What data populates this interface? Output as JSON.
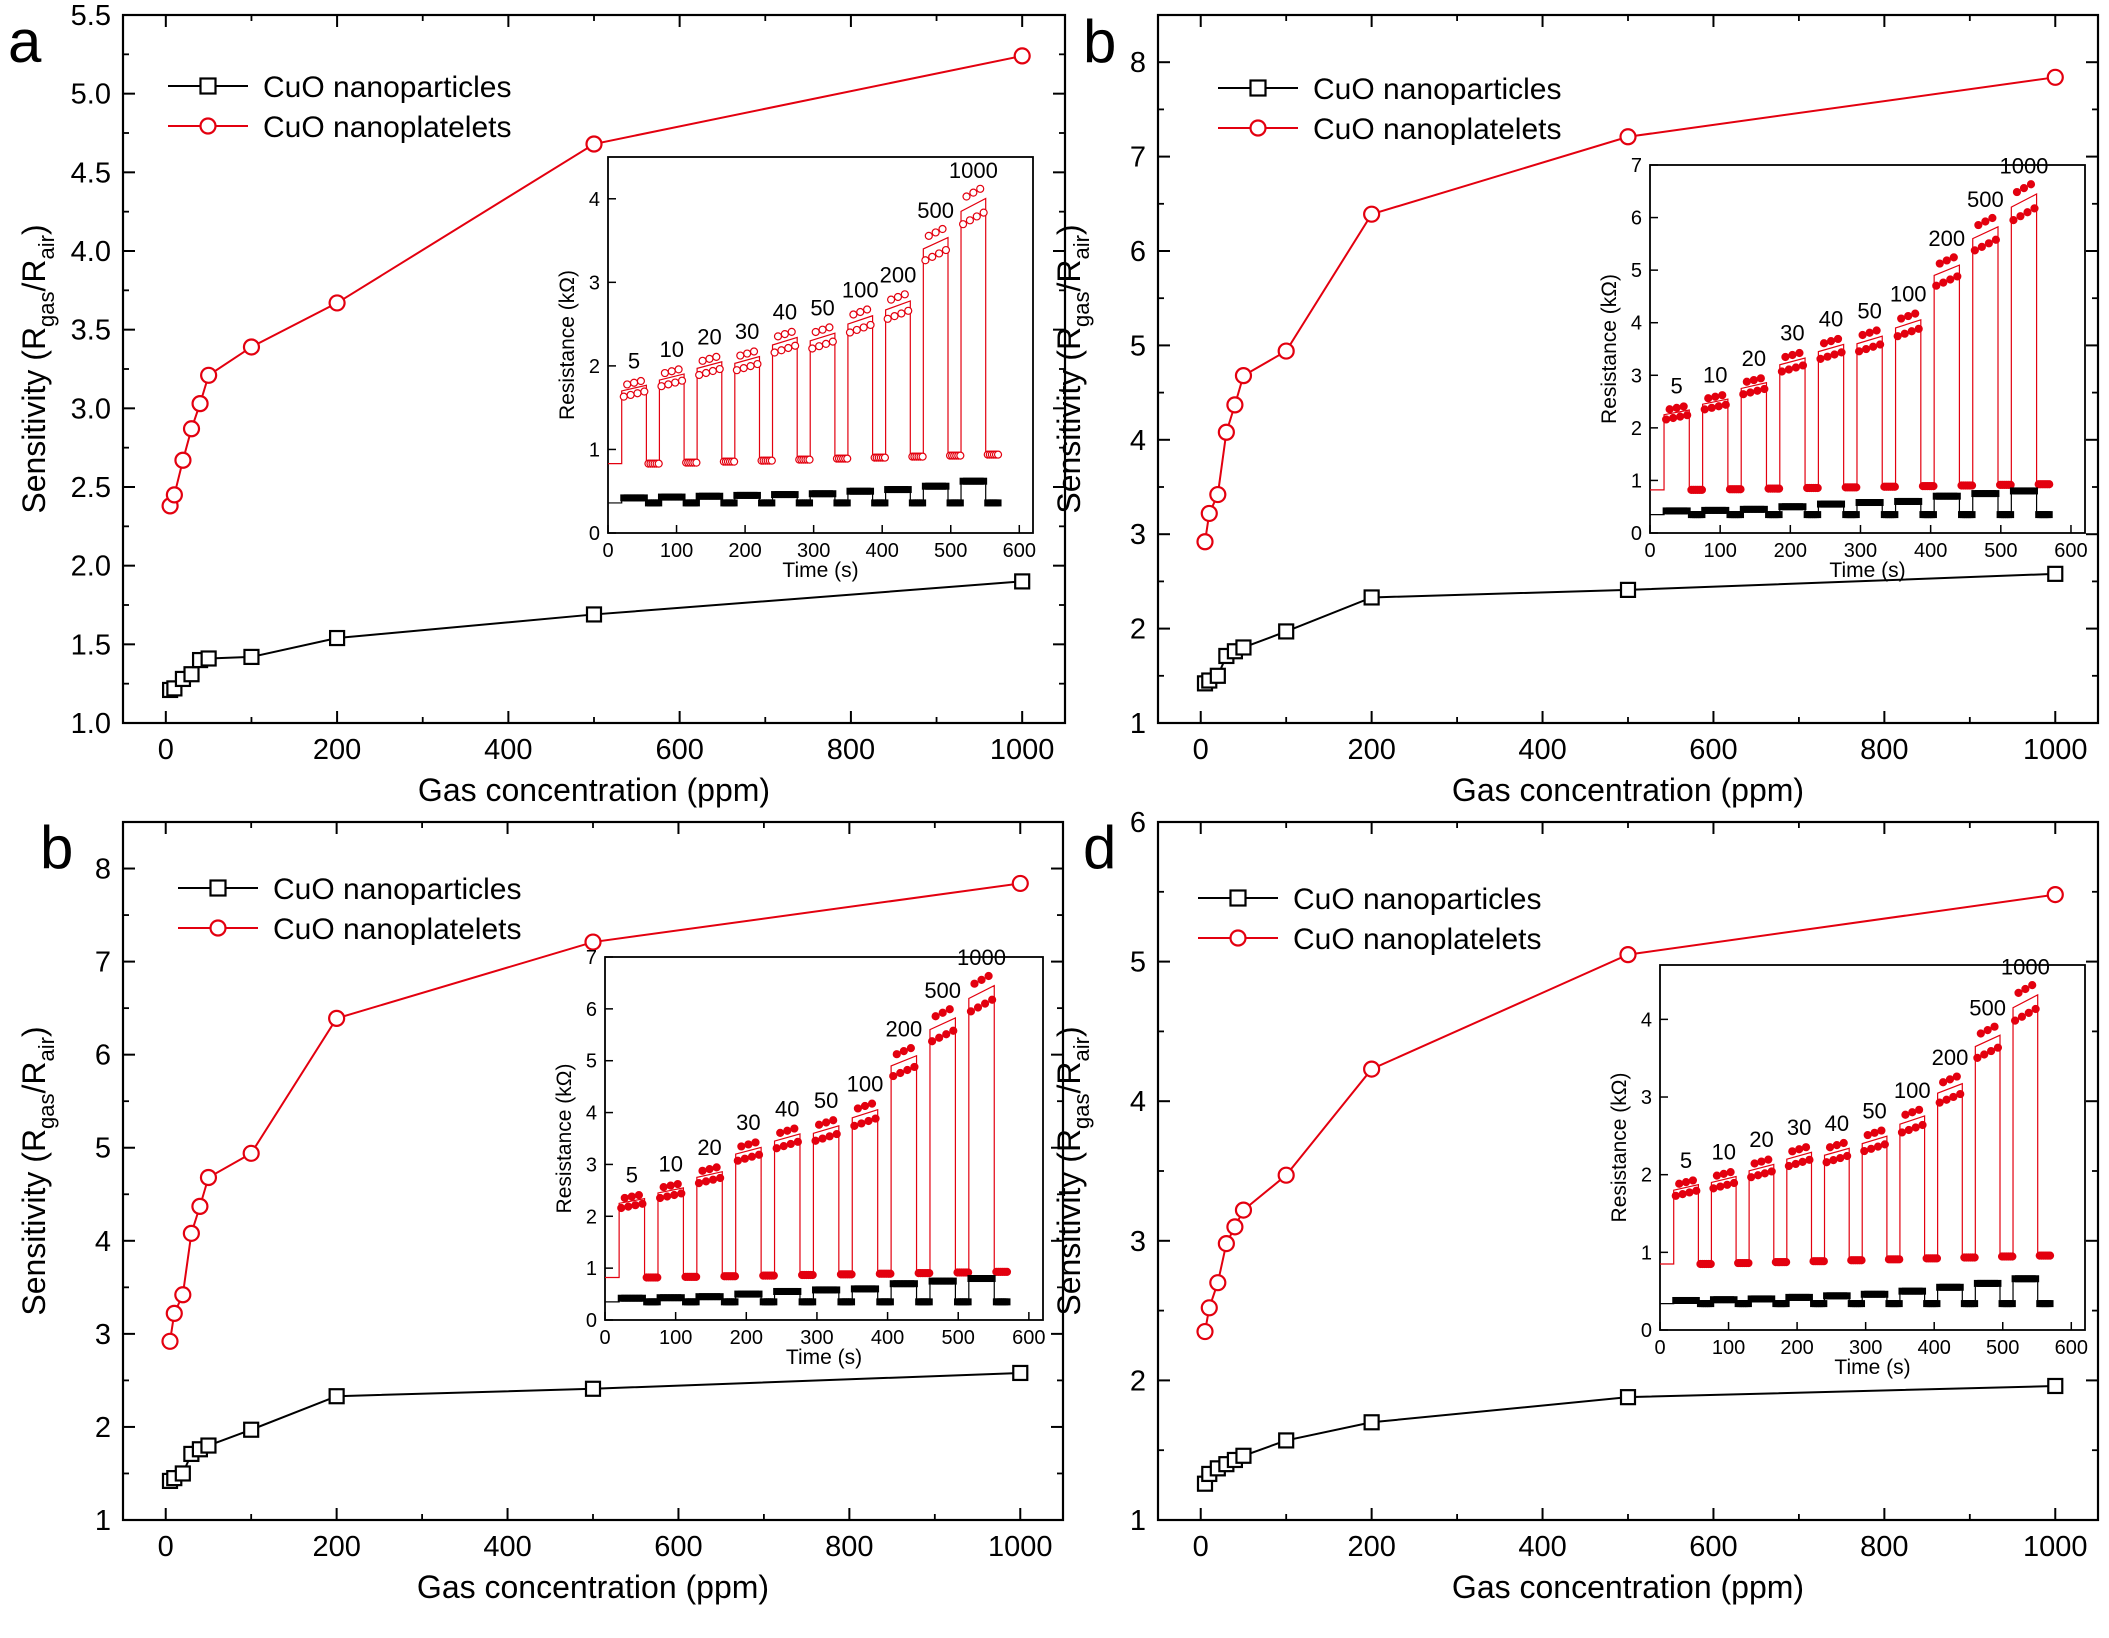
{
  "chart_data": [
    {
      "type": "line",
      "panel_label": "a",
      "xlabel": "Gas concentration (ppm)",
      "ylabel": "Sensitivity (R",
      "ylabel_sub1": "gas",
      "ylabel_mid": "/R",
      "ylabel_sub2": "air",
      "ylabel_end": ")",
      "xlim": [
        -50,
        1050
      ],
      "ylim": [
        1.0,
        5.5
      ],
      "xticks": [
        0,
        200,
        400,
        600,
        800,
        1000
      ],
      "xtick_labels": [
        "0",
        "200",
        "400",
        "600",
        "800",
        "1000"
      ],
      "yticks": [
        1.0,
        1.5,
        2.0,
        2.5,
        3.0,
        3.5,
        4.0,
        4.5,
        5.0,
        5.5
      ],
      "ytick_labels": [
        "1.0",
        "1.5",
        "2.0",
        "2.5",
        "3.0",
        "3.5",
        "4.0",
        "4.5",
        "5.0",
        "5.5"
      ],
      "legend_position": "top-left",
      "series": [
        {
          "name": "CuO nanoparticles",
          "color": "#000000",
          "marker": "square",
          "x": [
            5,
            10,
            20,
            30,
            40,
            50,
            100,
            200,
            500,
            1000
          ],
          "y": [
            1.21,
            1.22,
            1.28,
            1.31,
            1.4,
            1.41,
            1.42,
            1.54,
            1.69,
            1.9
          ]
        },
        {
          "name": "CuO nanoplatelets",
          "color": "#e3000f",
          "marker": "circle",
          "x": [
            5,
            10,
            20,
            30,
            40,
            50,
            100,
            200,
            500,
            1000
          ],
          "y": [
            2.38,
            2.45,
            2.67,
            2.87,
            3.03,
            3.21,
            3.39,
            3.67,
            4.68,
            5.24
          ]
        }
      ],
      "inset": {
        "xlabel": "Time (s)",
        "ylabel": "Resistance (kΩ)",
        "xlim": [
          0,
          620
        ],
        "ylim": [
          0,
          4.5
        ],
        "xticks": [
          0,
          100,
          200,
          300,
          400,
          500,
          600
        ],
        "xtick_labels": [
          "0",
          "100",
          "200",
          "300",
          "400",
          "500",
          "600"
        ],
        "yticks": [
          0,
          1,
          2,
          3,
          4
        ],
        "ytick_labels": [
          "0",
          "1",
          "2",
          "3",
          "4"
        ],
        "concentration_labels": [
          "5",
          "10",
          "20",
          "30",
          "40",
          "50",
          "100",
          "200",
          "500",
          "1000"
        ],
        "pulse_start_times": [
          20,
          75,
          130,
          185,
          240,
          295,
          350,
          405,
          460,
          515,
          570
        ],
        "platelet_high_kohm": [
          1.7,
          1.83,
          1.97,
          2.03,
          2.25,
          2.3,
          2.5,
          2.67,
          3.4,
          3.85
        ],
        "platelet_base_kohm": 0.83,
        "particle_high_kohm": [
          0.42,
          0.43,
          0.44,
          0.45,
          0.46,
          0.47,
          0.5,
          0.52,
          0.56,
          0.62
        ],
        "particle_base_kohm": 0.36,
        "marker_style": "open"
      }
    },
    {
      "type": "line",
      "panel_label": "b",
      "xlabel": "Gas concentration (ppm)",
      "ylabel": "Sensitivity (R",
      "ylabel_sub1": "gas",
      "ylabel_mid": "/R",
      "ylabel_sub2": "air",
      "ylabel_end": ")",
      "xlim": [
        -50,
        1050
      ],
      "ylim": [
        1,
        8.5
      ],
      "xticks": [
        0,
        200,
        400,
        600,
        800,
        1000
      ],
      "xtick_labels": [
        "0",
        "200",
        "400",
        "600",
        "800",
        "1000"
      ],
      "yticks": [
        1,
        2,
        3,
        4,
        5,
        6,
        7,
        8
      ],
      "ytick_labels": [
        "1",
        "2",
        "3",
        "4",
        "5",
        "6",
        "7",
        "8"
      ],
      "legend_position": "top-left",
      "series": [
        {
          "name": "CuO nanoparticles",
          "color": "#000000",
          "marker": "square",
          "x": [
            5,
            10,
            20,
            30,
            40,
            50,
            100,
            200,
            500,
            1000
          ],
          "y": [
            1.42,
            1.45,
            1.5,
            1.71,
            1.76,
            1.8,
            1.97,
            2.33,
            2.41,
            2.58
          ]
        },
        {
          "name": "CuO nanoplatelets",
          "color": "#e3000f",
          "marker": "circle",
          "x": [
            5,
            10,
            20,
            30,
            40,
            50,
            100,
            200,
            500,
            1000
          ],
          "y": [
            2.92,
            3.22,
            3.42,
            4.08,
            4.37,
            4.68,
            4.94,
            6.39,
            7.21,
            7.84
          ]
        }
      ],
      "inset": {
        "xlabel": "Time (s)",
        "ylabel": "Resistance (kΩ)",
        "xlim": [
          0,
          620
        ],
        "ylim": [
          0,
          7
        ],
        "xticks": [
          0,
          100,
          200,
          300,
          400,
          500,
          600
        ],
        "xtick_labels": [
          "0",
          "100",
          "200",
          "300",
          "400",
          "500",
          "600"
        ],
        "yticks": [
          0,
          1,
          2,
          3,
          4,
          5,
          6,
          7
        ],
        "ytick_labels": [
          "0",
          "1",
          "2",
          "3",
          "4",
          "5",
          "6",
          "7"
        ],
        "concentration_labels": [
          "5",
          "10",
          "20",
          "30",
          "40",
          "50",
          "100",
          "200",
          "500",
          "1000"
        ],
        "pulse_start_times": [
          20,
          75,
          130,
          185,
          240,
          295,
          350,
          405,
          460,
          515,
          570
        ],
        "platelet_high_kohm": [
          2.25,
          2.45,
          2.75,
          3.2,
          3.45,
          3.6,
          3.9,
          4.9,
          5.6,
          6.2
        ],
        "platelet_base_kohm": 0.82,
        "particle_high_kohm": [
          0.42,
          0.43,
          0.45,
          0.5,
          0.55,
          0.58,
          0.6,
          0.7,
          0.75,
          0.8
        ],
        "particle_base_kohm": 0.35,
        "marker_style": "filled"
      }
    },
    {
      "type": "line",
      "panel_label": "b",
      "xlabel": "Gas concentration (ppm)",
      "ylabel": "Sensitivity (R",
      "ylabel_sub1": "gas",
      "ylabel_mid": "/R",
      "ylabel_sub2": "air",
      "ylabel_end": ")",
      "xlim": [
        -50,
        1050
      ],
      "ylim": [
        1,
        8.5
      ],
      "xticks": [
        0,
        200,
        400,
        600,
        800,
        1000
      ],
      "xtick_labels": [
        "0",
        "200",
        "400",
        "600",
        "800",
        "1000"
      ],
      "yticks": [
        1,
        2,
        3,
        4,
        5,
        6,
        7,
        8
      ],
      "ytick_labels": [
        "1",
        "2",
        "3",
        "4",
        "5",
        "6",
        "7",
        "8"
      ],
      "legend_position": "top-left",
      "series": [
        {
          "name": "CuO nanoparticles",
          "color": "#000000",
          "marker": "square",
          "x": [
            5,
            10,
            20,
            30,
            40,
            50,
            100,
            200,
            500,
            1000
          ],
          "y": [
            1.42,
            1.45,
            1.5,
            1.71,
            1.76,
            1.8,
            1.97,
            2.33,
            2.41,
            2.58
          ]
        },
        {
          "name": "CuO nanoplatelets",
          "color": "#e3000f",
          "marker": "circle",
          "x": [
            5,
            10,
            20,
            30,
            40,
            50,
            100,
            200,
            500,
            1000
          ],
          "y": [
            2.92,
            3.22,
            3.42,
            4.08,
            4.37,
            4.68,
            4.94,
            6.39,
            7.21,
            7.84
          ]
        }
      ],
      "inset": {
        "xlabel": "Time (s)",
        "ylabel": "Resistance (kΩ)",
        "xlim": [
          0,
          620
        ],
        "ylim": [
          0,
          7
        ],
        "xticks": [
          0,
          100,
          200,
          300,
          400,
          500,
          600
        ],
        "xtick_labels": [
          "0",
          "100",
          "200",
          "300",
          "400",
          "500",
          "600"
        ],
        "yticks": [
          0,
          1,
          2,
          3,
          4,
          5,
          6,
          7
        ],
        "ytick_labels": [
          "0",
          "1",
          "2",
          "3",
          "4",
          "5",
          "6",
          "7"
        ],
        "concentration_labels": [
          "5",
          "10",
          "20",
          "30",
          "40",
          "50",
          "100",
          "200",
          "500",
          "1000"
        ],
        "pulse_start_times": [
          20,
          75,
          130,
          185,
          240,
          295,
          350,
          405,
          460,
          515,
          570
        ],
        "platelet_high_kohm": [
          2.25,
          2.45,
          2.75,
          3.2,
          3.45,
          3.6,
          3.9,
          4.9,
          5.6,
          6.2
        ],
        "platelet_base_kohm": 0.82,
        "particle_high_kohm": [
          0.42,
          0.43,
          0.45,
          0.5,
          0.55,
          0.58,
          0.6,
          0.7,
          0.75,
          0.8
        ],
        "particle_base_kohm": 0.35,
        "marker_style": "filled"
      }
    },
    {
      "type": "line",
      "panel_label": "d",
      "xlabel": "Gas concentration (ppm)",
      "ylabel": "Sensitivity (R",
      "ylabel_sub1": "gas",
      "ylabel_mid": "/R",
      "ylabel_sub2": "air",
      "ylabel_end": ")",
      "xlim": [
        -50,
        1050
      ],
      "ylim": [
        1,
        6
      ],
      "xticks": [
        0,
        200,
        400,
        600,
        800,
        1000
      ],
      "xtick_labels": [
        "0",
        "200",
        "400",
        "600",
        "800",
        "1000"
      ],
      "yticks": [
        1,
        2,
        3,
        4,
        5,
        6
      ],
      "ytick_labels": [
        "1",
        "2",
        "3",
        "4",
        "5",
        "6"
      ],
      "legend_position": "top-left",
      "series": [
        {
          "name": "CuO nanoparticles",
          "color": "#000000",
          "marker": "square",
          "x": [
            5,
            10,
            20,
            30,
            40,
            50,
            100,
            200,
            500,
            1000
          ],
          "y": [
            1.26,
            1.33,
            1.37,
            1.4,
            1.43,
            1.46,
            1.57,
            1.7,
            1.88,
            1.96
          ]
        },
        {
          "name": "CuO nanoplatelets",
          "color": "#e3000f",
          "marker": "circle",
          "x": [
            5,
            10,
            20,
            30,
            40,
            50,
            100,
            200,
            500,
            1000
          ],
          "y": [
            2.35,
            2.52,
            2.7,
            2.98,
            3.1,
            3.22,
            3.47,
            4.23,
            5.05,
            5.48
          ]
        }
      ],
      "inset": {
        "xlabel": "Time (s)",
        "ylabel": "Resistance (kΩ)",
        "xlim": [
          0,
          620
        ],
        "ylim": [
          0,
          4.7
        ],
        "xticks": [
          0,
          100,
          200,
          300,
          400,
          500,
          600
        ],
        "xtick_labels": [
          "0",
          "100",
          "200",
          "300",
          "400",
          "500",
          "600"
        ],
        "yticks": [
          0,
          1,
          2,
          3,
          4
        ],
        "ytick_labels": [
          "0",
          "1",
          "2",
          "3",
          "4"
        ],
        "concentration_labels": [
          "5",
          "10",
          "20",
          "30",
          "40",
          "50",
          "100",
          "200",
          "500",
          "1000"
        ],
        "pulse_start_times": [
          20,
          75,
          130,
          185,
          240,
          295,
          350,
          405,
          460,
          515,
          570
        ],
        "platelet_high_kohm": [
          1.8,
          1.9,
          2.05,
          2.2,
          2.25,
          2.4,
          2.65,
          3.05,
          3.65,
          4.15
        ],
        "platelet_base_kohm": 0.85,
        "particle_high_kohm": [
          0.38,
          0.39,
          0.4,
          0.42,
          0.44,
          0.46,
          0.5,
          0.55,
          0.6,
          0.66
        ],
        "particle_base_kohm": 0.34,
        "marker_style": "filled"
      }
    }
  ]
}
